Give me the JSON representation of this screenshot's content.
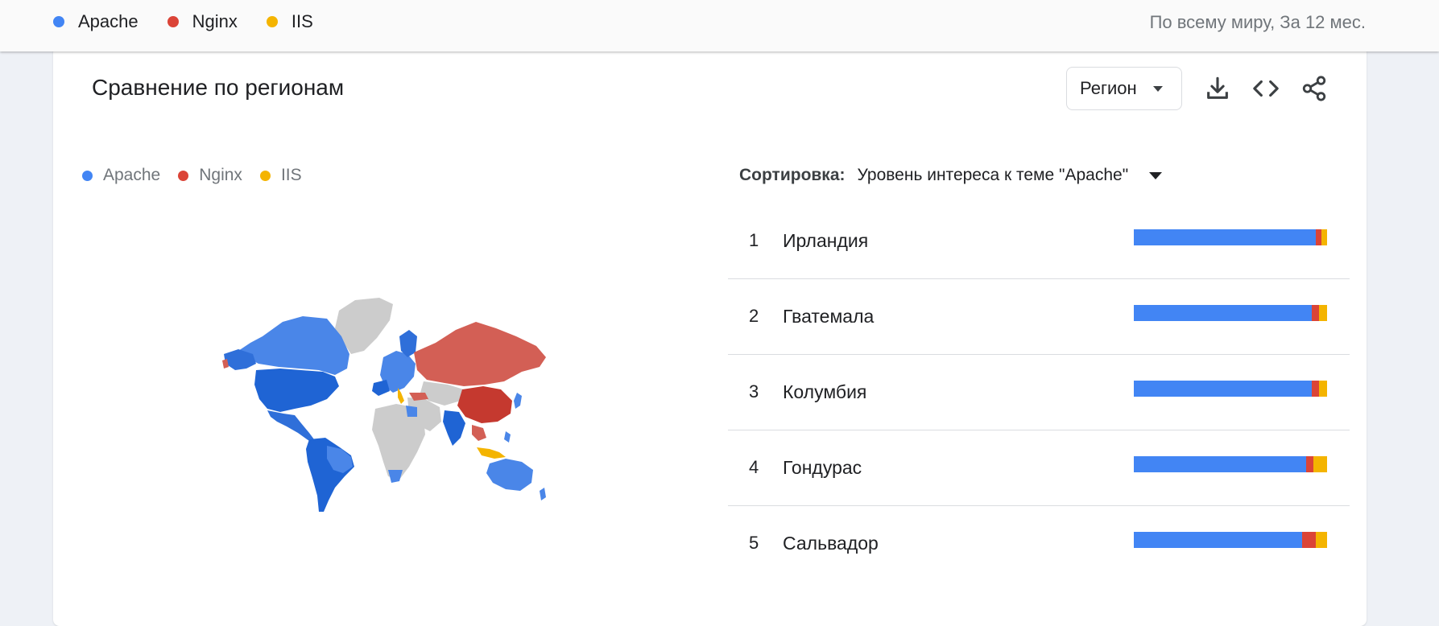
{
  "colors": {
    "apache": "#4285f4",
    "nginx": "#db4437",
    "iis": "#f4b400"
  },
  "top_legend": {
    "items": [
      {
        "label": "Apache",
        "color": "#4285f4"
      },
      {
        "label": "Nginx",
        "color": "#db4437"
      },
      {
        "label": "IIS",
        "color": "#f4b400"
      }
    ],
    "scope": "По всему миру, За 12 мес."
  },
  "card": {
    "title": "Сравнение по регионам",
    "region_button": "Регион",
    "toolbar": {
      "download_icon": "download-icon",
      "embed_icon": "code-icon",
      "share_icon": "share-icon"
    },
    "legend": [
      {
        "label": "Apache",
        "color": "#4285f4"
      },
      {
        "label": "Nginx",
        "color": "#db4437"
      },
      {
        "label": "IIS",
        "color": "#f4b400"
      }
    ],
    "sort": {
      "label": "Сортировка:",
      "value": "Уровень интереса к теме \"Apache\""
    },
    "regions": [
      {
        "rank": "1",
        "name": "Ирландия",
        "shares": {
          "apache": 94,
          "nginx": 3,
          "iis": 3
        }
      },
      {
        "rank": "2",
        "name": "Гватемала",
        "shares": {
          "apache": 92,
          "nginx": 4,
          "iis": 4
        }
      },
      {
        "rank": "3",
        "name": "Колумбия",
        "shares": {
          "apache": 92,
          "nginx": 4,
          "iis": 4
        }
      },
      {
        "rank": "4",
        "name": "Гондурас",
        "shares": {
          "apache": 89,
          "nginx": 4,
          "iis": 7
        }
      },
      {
        "rank": "5",
        "name": "Сальвадор",
        "shares": {
          "apache": 87,
          "nginx": 7,
          "iis": 6
        }
      }
    ]
  },
  "map": {
    "colors": {
      "apache": "#4285f4",
      "apache_dark": "#1a66d6",
      "nginx": "#d35f55",
      "nginx_dark": "#c5392f",
      "iis": "#f4b400",
      "nodata": "#cccccc"
    }
  }
}
